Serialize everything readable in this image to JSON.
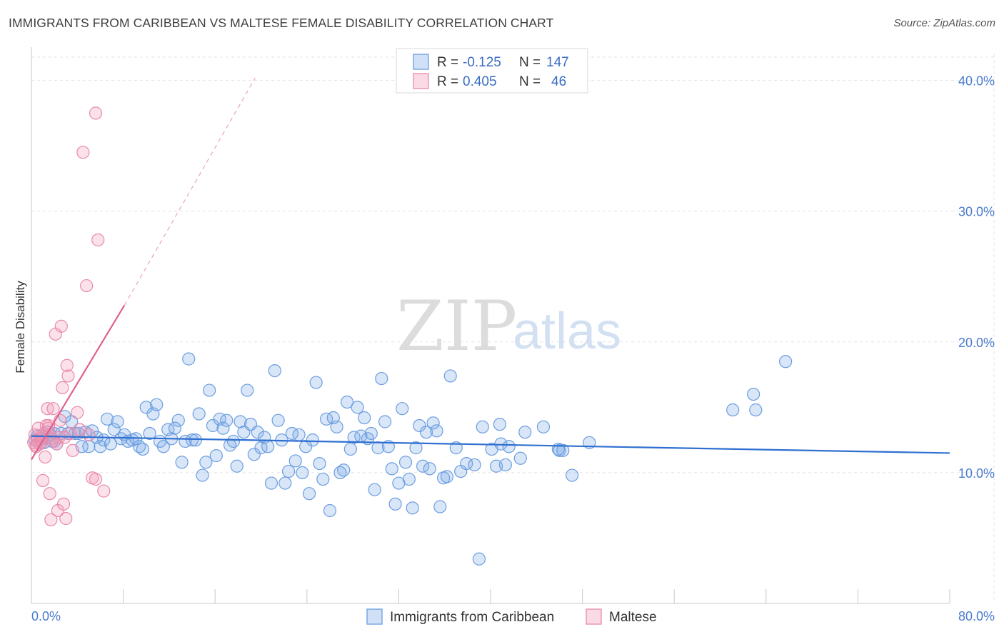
{
  "header": {
    "title": "IMMIGRANTS FROM CARIBBEAN VS MALTESE FEMALE DISABILITY CORRELATION CHART",
    "source": "Source: ZipAtlas.com"
  },
  "legend_top": {
    "rows": [
      {
        "r_label": "R =",
        "r_value": "-0.125",
        "n_label": "N =",
        "n_value": "147"
      },
      {
        "r_label": "R =",
        "r_value": "0.405",
        "n_label": "N =",
        "n_value": "46"
      }
    ]
  },
  "watermark": {
    "zip": "ZIP",
    "atlas": "atlas"
  },
  "colors": {
    "blue": "#6b9ee0",
    "blue_fill": "rgba(120,165,230,0.28)",
    "blue_line": "#2f6fd0",
    "pink": "#e98aaa",
    "pink_fill": "rgba(240,150,180,0.28)",
    "pink_line": "#e0608f"
  },
  "chart_data": {
    "type": "scatter",
    "title": "IMMIGRANTS FROM CARIBBEAN VS MALTESE FEMALE DISABILITY CORRELATION CHART",
    "xlabel": "",
    "ylabel": "Female Disability",
    "xlim": [
      0,
      80
    ],
    "ylim": [
      0,
      42
    ],
    "x_tick_labels": [
      "0.0%",
      "80.0%"
    ],
    "y_ticks": [
      10,
      20,
      30,
      40
    ],
    "y_tick_labels": [
      "10.0%",
      "20.0%",
      "30.0%",
      "40.0%"
    ],
    "grid": true,
    "legend_position": "top-center",
    "series": [
      {
        "name": "Immigrants from Caribbean",
        "color": "#6b9ee0",
        "stats": {
          "R": -0.125,
          "N": 147
        },
        "trend": {
          "x0": 0,
          "y0": 12.8,
          "x1": 80,
          "y1": 11.5
        },
        "points": [
          [
            0.3,
            12.5
          ],
          [
            0.5,
            12.8
          ],
          [
            0.7,
            12.2
          ],
          [
            0.9,
            12.6
          ],
          [
            1.1,
            12.3
          ],
          [
            1.4,
            13.1
          ],
          [
            1.6,
            12.9
          ],
          [
            1.8,
            12.4
          ],
          [
            2.0,
            13.0
          ],
          [
            2.2,
            12.2
          ],
          [
            2.6,
            13.0
          ],
          [
            2.9,
            14.3
          ],
          [
            3.2,
            13.0
          ],
          [
            3.5,
            13.9
          ],
          [
            3.8,
            13.0
          ],
          [
            4.1,
            13.0
          ],
          [
            4.4,
            12.0
          ],
          [
            4.7,
            13.1
          ],
          [
            5.0,
            12.0
          ],
          [
            5.3,
            13.2
          ],
          [
            5.7,
            12.7
          ],
          [
            6.0,
            12.0
          ],
          [
            6.3,
            12.5
          ],
          [
            6.6,
            14.1
          ],
          [
            6.9,
            12.2
          ],
          [
            7.2,
            13.3
          ],
          [
            7.5,
            13.9
          ],
          [
            7.8,
            12.6
          ],
          [
            8.1,
            12.9
          ],
          [
            8.4,
            12.4
          ],
          [
            8.8,
            12.5
          ],
          [
            9.1,
            12.6
          ],
          [
            9.4,
            12.0
          ],
          [
            9.7,
            11.8
          ],
          [
            10.0,
            15.0
          ],
          [
            10.3,
            13.0
          ],
          [
            10.6,
            14.5
          ],
          [
            10.9,
            15.2
          ],
          [
            11.2,
            12.4
          ],
          [
            11.5,
            12.0
          ],
          [
            11.9,
            13.3
          ],
          [
            12.2,
            12.6
          ],
          [
            12.5,
            13.4
          ],
          [
            12.8,
            14.0
          ],
          [
            13.1,
            10.8
          ],
          [
            13.4,
            12.4
          ],
          [
            13.7,
            18.7
          ],
          [
            14.0,
            12.5
          ],
          [
            14.3,
            12.5
          ],
          [
            14.6,
            14.5
          ],
          [
            14.9,
            9.8
          ],
          [
            15.2,
            10.8
          ],
          [
            15.5,
            16.3
          ],
          [
            15.8,
            13.6
          ],
          [
            16.1,
            11.3
          ],
          [
            16.4,
            14.1
          ],
          [
            16.7,
            13.4
          ],
          [
            17.0,
            14.0
          ],
          [
            17.3,
            12.1
          ],
          [
            17.6,
            12.4
          ],
          [
            17.9,
            10.5
          ],
          [
            18.2,
            13.9
          ],
          [
            18.5,
            13.1
          ],
          [
            18.8,
            16.3
          ],
          [
            19.1,
            13.7
          ],
          [
            19.4,
            11.4
          ],
          [
            19.7,
            13.1
          ],
          [
            20.0,
            11.9
          ],
          [
            20.3,
            12.7
          ],
          [
            20.6,
            12.0
          ],
          [
            20.9,
            9.2
          ],
          [
            21.2,
            17.8
          ],
          [
            21.5,
            14.0
          ],
          [
            21.8,
            12.5
          ],
          [
            22.1,
            9.2
          ],
          [
            22.4,
            10.1
          ],
          [
            22.7,
            13.0
          ],
          [
            23.0,
            10.9
          ],
          [
            23.3,
            12.9
          ],
          [
            23.6,
            10.0
          ],
          [
            23.9,
            12.0
          ],
          [
            24.2,
            8.4
          ],
          [
            24.5,
            12.5
          ],
          [
            24.8,
            16.9
          ],
          [
            25.1,
            10.7
          ],
          [
            25.4,
            9.5
          ],
          [
            25.7,
            14.1
          ],
          [
            26.0,
            7.1
          ],
          [
            26.3,
            14.2
          ],
          [
            26.6,
            13.5
          ],
          [
            26.9,
            10.0
          ],
          [
            27.2,
            10.2
          ],
          [
            27.5,
            15.4
          ],
          [
            27.8,
            11.8
          ],
          [
            28.1,
            12.7
          ],
          [
            28.4,
            15.0
          ],
          [
            28.7,
            12.8
          ],
          [
            29.0,
            14.2
          ],
          [
            29.3,
            12.6
          ],
          [
            29.6,
            13.0
          ],
          [
            29.9,
            8.7
          ],
          [
            30.2,
            11.9
          ],
          [
            30.5,
            17.2
          ],
          [
            30.8,
            13.9
          ],
          [
            31.1,
            12.0
          ],
          [
            31.4,
            10.3
          ],
          [
            31.7,
            7.6
          ],
          [
            32.0,
            9.2
          ],
          [
            32.3,
            14.9
          ],
          [
            32.6,
            10.8
          ],
          [
            32.9,
            9.5
          ],
          [
            33.2,
            7.3
          ],
          [
            33.5,
            11.9
          ],
          [
            33.8,
            13.6
          ],
          [
            34.1,
            10.5
          ],
          [
            34.4,
            13.1
          ],
          [
            34.7,
            10.3
          ],
          [
            35.0,
            13.8
          ],
          [
            35.3,
            13.2
          ],
          [
            35.6,
            7.4
          ],
          [
            35.9,
            9.6
          ],
          [
            36.2,
            9.7
          ],
          [
            36.5,
            17.4
          ],
          [
            37.0,
            11.9
          ],
          [
            37.4,
            10.1
          ],
          [
            37.9,
            10.7
          ],
          [
            38.6,
            10.6
          ],
          [
            39.0,
            3.4
          ],
          [
            39.3,
            13.5
          ],
          [
            40.1,
            11.8
          ],
          [
            40.5,
            10.5
          ],
          [
            40.8,
            13.7
          ],
          [
            40.9,
            12.2
          ],
          [
            41.3,
            10.6
          ],
          [
            41.6,
            12.0
          ],
          [
            42.6,
            11.1
          ],
          [
            43.0,
            13.1
          ],
          [
            44.6,
            13.5
          ],
          [
            46.0,
            11.7
          ],
          [
            46.3,
            11.7
          ],
          [
            47.1,
            9.8
          ],
          [
            48.6,
            12.3
          ],
          [
            61.1,
            14.8
          ],
          [
            62.9,
            16.0
          ],
          [
            63.1,
            14.8
          ],
          [
            65.7,
            18.5
          ],
          [
            45.9,
            11.8
          ]
        ]
      },
      {
        "name": "Maltese",
        "color": "#e98aaa",
        "stats": {
          "R": 0.405,
          "N": 46
        },
        "trend": {
          "x0": 0,
          "y0": 11.0,
          "x1": 8.1,
          "y1": 22.8,
          "dashed_to": {
            "x": 19.5,
            "y": 40.2
          }
        },
        "points": [
          [
            0.2,
            12.3
          ],
          [
            0.3,
            12.9
          ],
          [
            0.4,
            12.1
          ],
          [
            0.5,
            12.5
          ],
          [
            0.6,
            13.4
          ],
          [
            0.7,
            12.2
          ],
          [
            0.8,
            12.6
          ],
          [
            0.9,
            12.3
          ],
          [
            1.0,
            9.4
          ],
          [
            1.1,
            13.0
          ],
          [
            1.2,
            11.2
          ],
          [
            1.3,
            13.6
          ],
          [
            1.4,
            14.9
          ],
          [
            1.5,
            13.4
          ],
          [
            1.6,
            8.4
          ],
          [
            1.7,
            6.4
          ],
          [
            1.8,
            12.6
          ],
          [
            1.9,
            14.9
          ],
          [
            2.0,
            12.4
          ],
          [
            2.1,
            20.6
          ],
          [
            2.3,
            7.1
          ],
          [
            2.4,
            12.7
          ],
          [
            2.5,
            14.0
          ],
          [
            2.6,
            21.2
          ],
          [
            2.7,
            16.5
          ],
          [
            2.8,
            7.6
          ],
          [
            2.9,
            12.7
          ],
          [
            3.0,
            6.5
          ],
          [
            3.1,
            18.2
          ],
          [
            3.2,
            17.4
          ],
          [
            3.4,
            13.0
          ],
          [
            3.6,
            11.7
          ],
          [
            4.0,
            14.6
          ],
          [
            4.2,
            13.3
          ],
          [
            4.5,
            34.5
          ],
          [
            4.8,
            24.3
          ],
          [
            5.0,
            12.9
          ],
          [
            5.3,
            9.6
          ],
          [
            5.6,
            9.5
          ],
          [
            5.6,
            37.5
          ],
          [
            5.8,
            27.8
          ],
          [
            6.3,
            8.6
          ],
          [
            0.4,
            12.0
          ],
          [
            0.9,
            12.8
          ],
          [
            1.5,
            13.6
          ],
          [
            2.2,
            12.2
          ]
        ]
      }
    ]
  },
  "legend_bottom": {
    "items": [
      {
        "label": "Immigrants from Caribbean"
      },
      {
        "label": "Maltese"
      }
    ]
  }
}
